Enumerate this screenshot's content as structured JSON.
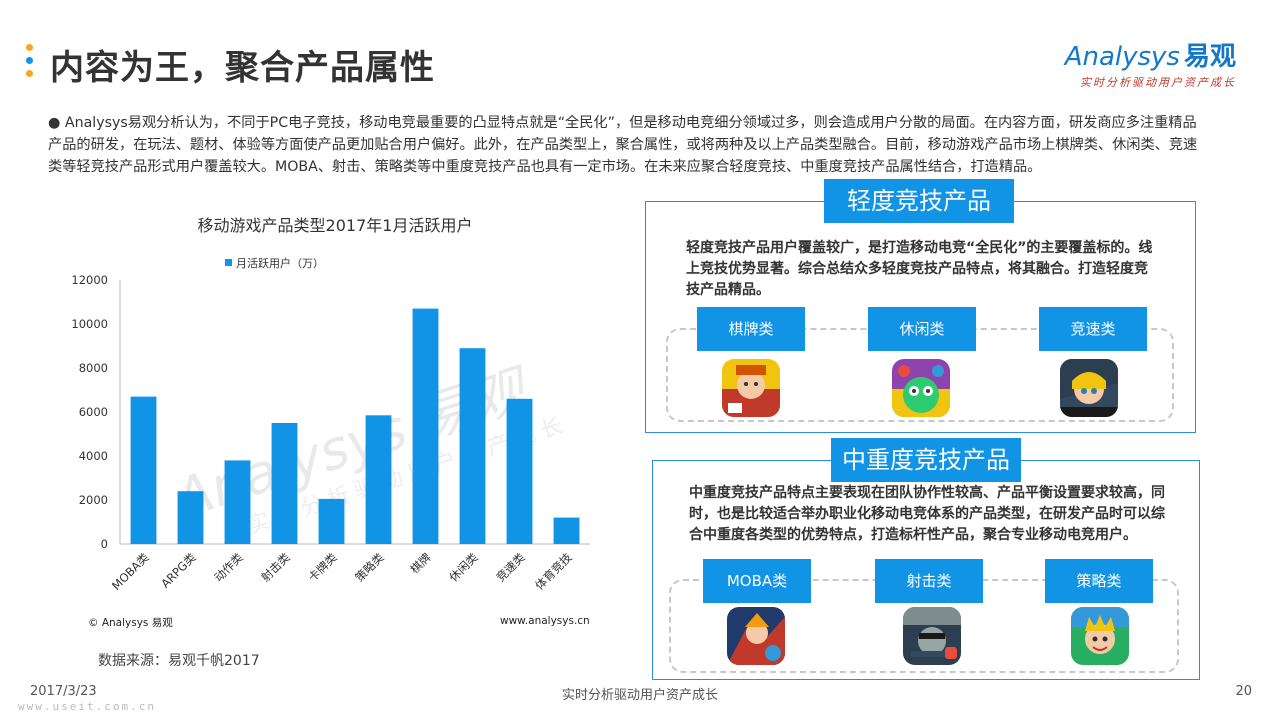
{
  "header": {
    "title": "内容为王，聚合产品属性",
    "dot_colors": [
      "#f5a623",
      "#1193e6",
      "#f5a623"
    ]
  },
  "logo": {
    "brand_latin": "Analysys",
    "brand_cn": "易观",
    "tagline": "实时分析驱动用户资产成长"
  },
  "intro": "● Analysys易观分析认为，不同于PC电子竞技，移动电竞最重要的凸显特点就是“全民化”，但是移动电竞细分领域过多，则会造成用户分散的局面。在内容方面，研发商应多注重精品产品的研发，在玩法、题材、体验等方面使产品更加贴合用户偏好。此外，在产品类型上，聚合属性，或将两种及以上产品类型融合。目前，移动游戏产品市场上棋牌类、休闲类、竞速类等轻竞技产品形式用户覆盖较大。MOBA、射击、策略类等中重度竞技产品也具有一定市场。在未来应聚合轻度竞技、中重度竞技产品属性结合，打造精品。",
  "chart_data": {
    "type": "bar",
    "title": "移动游戏产品类型2017年1月活跃用户",
    "legend": "月活跃用户（万）",
    "legend_position": "top",
    "categories": [
      "MOBA类",
      "ARPG类",
      "动作类",
      "射击类",
      "卡牌类",
      "策略类",
      "棋牌",
      "休闲类",
      "竞速类",
      "体育竞技"
    ],
    "series": [
      {
        "name": "月活跃用户（万）",
        "values": [
          6700,
          2400,
          3800,
          5500,
          2050,
          5850,
          10700,
          8900,
          6600,
          1200
        ]
      }
    ],
    "ylim": [
      0,
      12000
    ],
    "yticks": [
      0,
      2000,
      4000,
      6000,
      8000,
      10000,
      12000
    ],
    "bar_color": "#1193e6",
    "grid": false,
    "watermark_brand": "Analysys 易观",
    "watermark_tagline": "实时分析驱动用户资产成长"
  },
  "chart_footer": {
    "copyright": "© Analysys 易观",
    "site": "www.analysys.cn",
    "source": "数据来源：易观千帆2017"
  },
  "light_panel": {
    "title": "轻度竞技产品",
    "text": "轻度竞技产品用户覆盖较广，是打造移动电竞“全民化”的主要覆盖标的。线上竞技优势显著。综合总结众多轻度竞技产品特点，将其融合。打造轻度竞技产品精品。",
    "tags": [
      "棋牌类",
      "休闲类",
      "竞速类"
    ]
  },
  "heavy_panel": {
    "title": "中重度竞技产品",
    "text": "中重度竞技产品特点主要表现在团队协作性较高、产品平衡设置要求较高，同时，也是比较适合举办职业化移动电竞体系的产品类型，在研发产品时可以综合中重度各类型的优势特点，打造标杆性产品，聚合专业移动电竞用户。",
    "tags": [
      "MOBA类",
      "射击类",
      "策略类"
    ]
  },
  "footer": {
    "date": "2017/3/23",
    "center": "实时分析驱动用户资产成长",
    "page": "20",
    "url": "www.useit.com.cn"
  }
}
